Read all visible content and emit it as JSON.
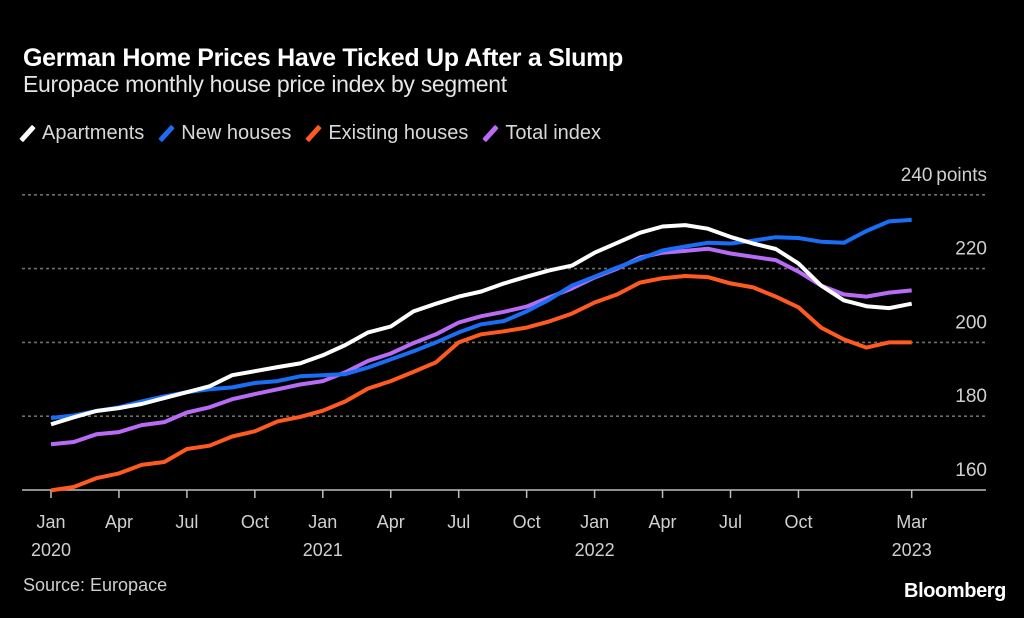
{
  "header": {
    "title": "German Home Prices Have Ticked Up After a Slump",
    "subtitle": "Europace monthly house price index by segment"
  },
  "legend": [
    {
      "label": "Apartments",
      "color": "#ffffff"
    },
    {
      "label": "New houses",
      "color": "#1a6ef5"
    },
    {
      "label": "Existing houses",
      "color": "#ff5a1f"
    },
    {
      "label": "Total index",
      "color": "#b86cf5"
    }
  ],
  "footer": {
    "source": "Source: Europace",
    "brand": "Bloomberg"
  },
  "chart_data": {
    "type": "line",
    "title": "German Home Prices Have Ticked Up After a Slump",
    "subtitle": "Europace monthly house price index by segment",
    "xlabel": "",
    "ylabel": "points",
    "y_unit_label": "points",
    "ylim": [
      160,
      240
    ],
    "y_ticks": [
      160,
      180,
      200,
      220,
      240
    ],
    "grid": true,
    "legend_position": "top-left",
    "x_start": "2020-01",
    "x_end": "2023-03",
    "x": [
      "2020-01",
      "2020-02",
      "2020-03",
      "2020-04",
      "2020-05",
      "2020-06",
      "2020-07",
      "2020-08",
      "2020-09",
      "2020-10",
      "2020-11",
      "2020-12",
      "2021-01",
      "2021-02",
      "2021-03",
      "2021-04",
      "2021-05",
      "2021-06",
      "2021-07",
      "2021-08",
      "2021-09",
      "2021-10",
      "2021-11",
      "2021-12",
      "2022-01",
      "2022-02",
      "2022-03",
      "2022-04",
      "2022-05",
      "2022-06",
      "2022-07",
      "2022-08",
      "2022-09",
      "2022-10",
      "2022-11",
      "2022-12",
      "2023-01",
      "2023-02",
      "2023-03"
    ],
    "x_ticks": [
      {
        "index": 0,
        "label": "Jan",
        "sublabel": "2020"
      },
      {
        "index": 3,
        "label": "Apr",
        "sublabel": ""
      },
      {
        "index": 6,
        "label": "Jul",
        "sublabel": ""
      },
      {
        "index": 9,
        "label": "Oct",
        "sublabel": ""
      },
      {
        "index": 12,
        "label": "Jan",
        "sublabel": "2021"
      },
      {
        "index": 15,
        "label": "Apr",
        "sublabel": ""
      },
      {
        "index": 18,
        "label": "Jul",
        "sublabel": ""
      },
      {
        "index": 21,
        "label": "Oct",
        "sublabel": ""
      },
      {
        "index": 24,
        "label": "Jan",
        "sublabel": "2022"
      },
      {
        "index": 27,
        "label": "Apr",
        "sublabel": ""
      },
      {
        "index": 30,
        "label": "Jul",
        "sublabel": ""
      },
      {
        "index": 33,
        "label": "Oct",
        "sublabel": ""
      },
      {
        "index": 38,
        "label": "Mar",
        "sublabel": "2023"
      }
    ],
    "series": [
      {
        "name": "Apartments",
        "color": "#ffffff",
        "values": [
          177.8,
          179.7,
          181.4,
          182.2,
          183.3,
          184.9,
          186.5,
          188.1,
          191.1,
          192.2,
          193.3,
          194.3,
          196.5,
          199.3,
          202.7,
          204.3,
          208.4,
          210.5,
          212.4,
          213.8,
          216.0,
          217.8,
          219.5,
          220.8,
          224.3,
          227.0,
          229.7,
          231.4,
          231.8,
          230.8,
          228.6,
          226.8,
          225.3,
          221.4,
          215.4,
          211.4,
          209.8,
          209.3,
          210.5
        ]
      },
      {
        "name": "New houses",
        "color": "#1a6ef5",
        "values": [
          179.5,
          180.2,
          181.4,
          182.4,
          184.0,
          185.4,
          186.5,
          187.3,
          187.8,
          189.0,
          189.5,
          190.8,
          191.1,
          191.4,
          193.2,
          195.4,
          197.6,
          200.0,
          202.7,
          204.9,
          205.8,
          208.4,
          211.6,
          215.4,
          217.8,
          220.3,
          222.6,
          224.9,
          226.0,
          227.0,
          226.8,
          227.6,
          228.5,
          228.3,
          227.3,
          227.0,
          230.2,
          232.8,
          233.2
        ]
      },
      {
        "name": "Existing houses",
        "color": "#ff5a1f",
        "values": [
          159.9,
          160.8,
          163.2,
          164.5,
          166.8,
          167.6,
          171.1,
          172.0,
          174.5,
          175.9,
          178.6,
          179.8,
          181.5,
          184.0,
          187.5,
          189.5,
          192.0,
          194.6,
          200.0,
          202.2,
          203.0,
          204.0,
          205.7,
          207.8,
          210.8,
          213.0,
          216.2,
          217.4,
          218.0,
          217.7,
          216.0,
          214.9,
          212.4,
          209.5,
          204.0,
          200.8,
          198.6,
          200.0,
          200.0
        ]
      },
      {
        "name": "Total index",
        "color": "#b86cf5",
        "values": [
          172.4,
          173.0,
          175.1,
          175.7,
          177.6,
          178.4,
          181.0,
          182.4,
          184.6,
          186.0,
          187.3,
          188.6,
          189.5,
          191.9,
          195.0,
          197.0,
          199.8,
          202.2,
          205.4,
          207.1,
          208.3,
          209.7,
          212.2,
          214.6,
          217.6,
          220.0,
          223.0,
          224.3,
          224.8,
          225.4,
          224.1,
          223.2,
          222.3,
          219.2,
          215.4,
          213.0,
          212.4,
          213.5,
          214.1
        ]
      }
    ]
  }
}
